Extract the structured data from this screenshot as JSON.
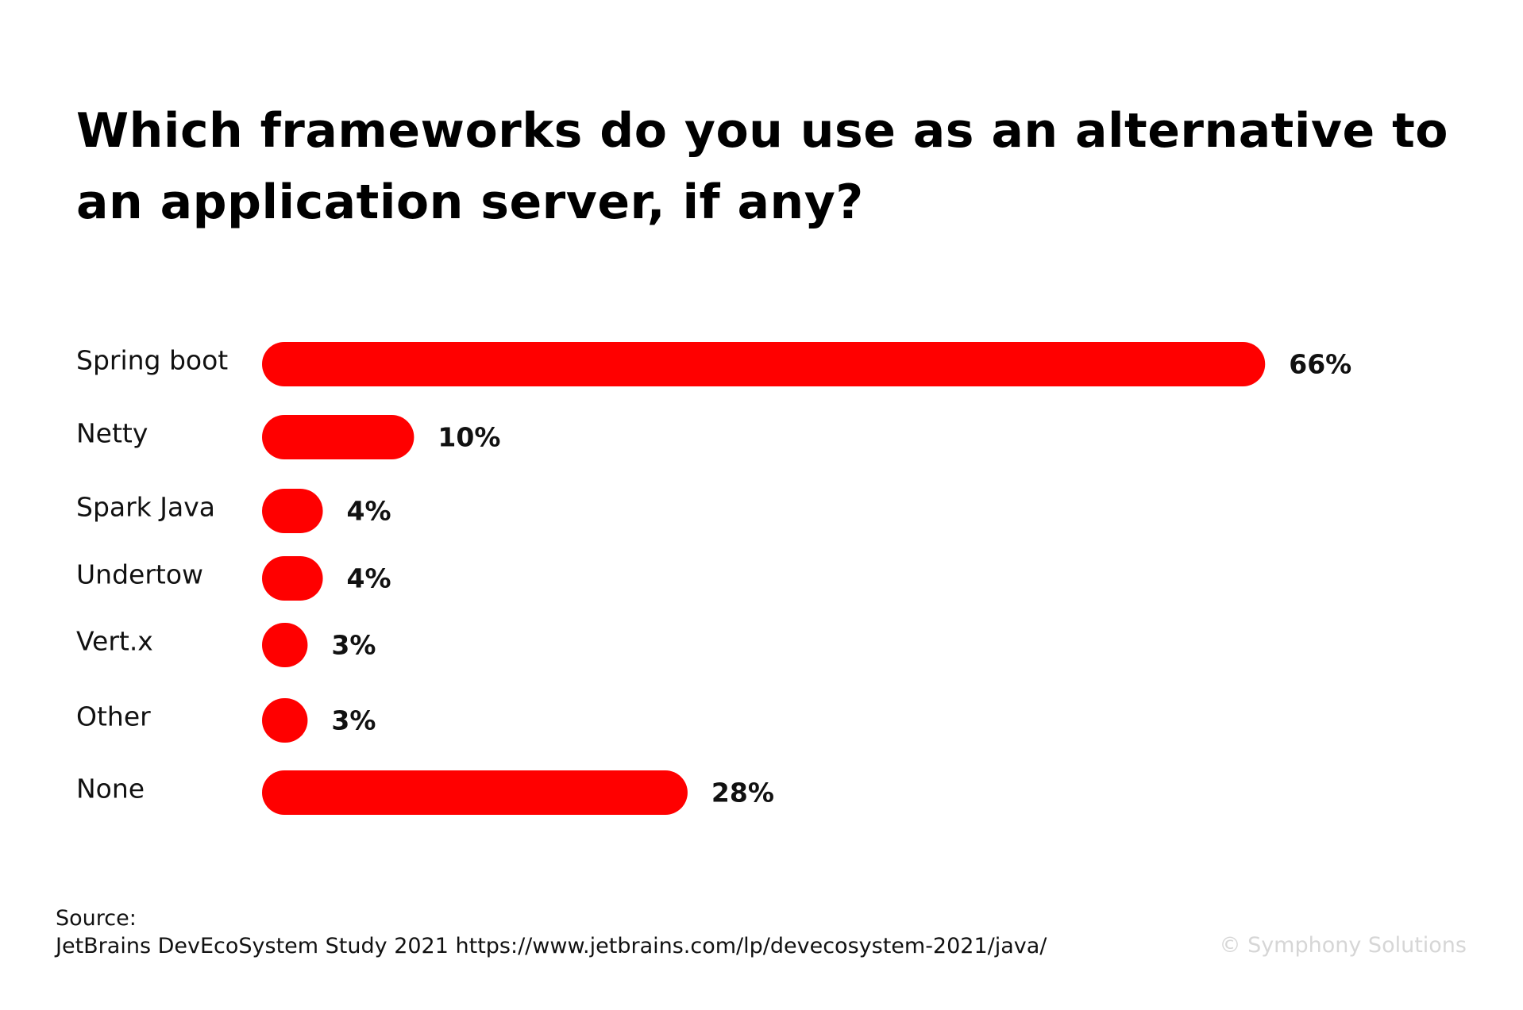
{
  "chart_data": {
    "type": "bar",
    "orientation": "horizontal",
    "title": "Which frameworks do you use as an alternative to an application server, if any?",
    "categories": [
      "Spring boot",
      "Netty",
      "Spark Java",
      "Undertow",
      "Vert.x",
      "Other",
      "None"
    ],
    "values": [
      66,
      10,
      4,
      4,
      3,
      3,
      28
    ],
    "value_labels": [
      "66%",
      "10%",
      "4%",
      "4%",
      "3%",
      "3%",
      "28%"
    ],
    "color": "#ff0000",
    "source_label": "Source:",
    "source": "JetBrains DevEcoSystem Study 2021 https://www.jetbrains.com/lp/devecosystem-2021/java/",
    "credit": "© Symphony Solutions"
  }
}
